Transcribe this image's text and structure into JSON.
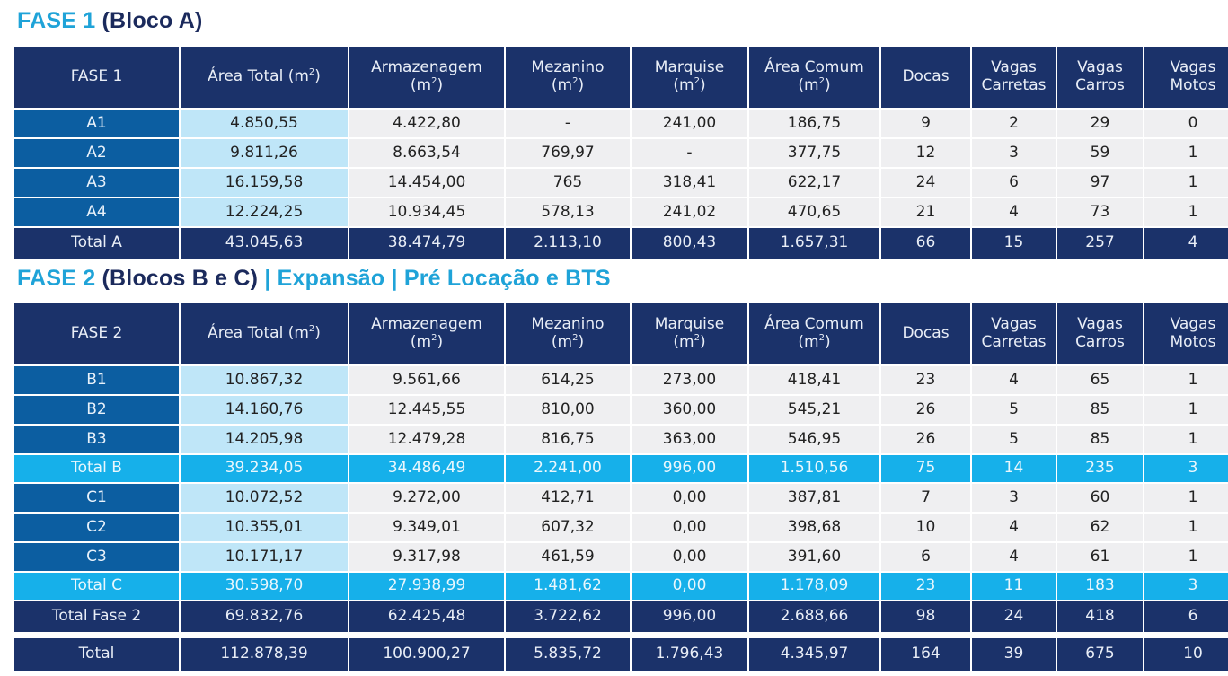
{
  "colors": {
    "header_navy": "#1b326a",
    "label_blue": "#0c5ea1",
    "area_light": "#bfe6f8",
    "row_gray": "#efeff1",
    "subtotal_cyan": "#16b0ea",
    "title_cyan": "#1fa3d8",
    "title_navy": "#1b2a5c"
  },
  "fase1": {
    "title": {
      "prefix": "FASE 1",
      "suffix": "(Bloco A)"
    },
    "headers": [
      {
        "line1": "FASE 1",
        "line2": ""
      },
      {
        "line1": "Área Total (m",
        "sup": "2",
        "close": ")"
      },
      {
        "line1": "Armazenagem",
        "line2": "(m",
        "sup": "2",
        "close": ")"
      },
      {
        "line1": "Mezanino",
        "line2": "(m",
        "sup": "2",
        "close": ")"
      },
      {
        "line1": "Marquise",
        "line2": "(m",
        "sup": "2",
        "close": ")"
      },
      {
        "line1": "Área Comum",
        "line2": "(m",
        "sup": "2",
        "close": ")"
      },
      {
        "line1": "Docas",
        "line2": ""
      },
      {
        "line1": "Vagas",
        "line2": "Carretas"
      },
      {
        "line1": "Vagas",
        "line2": "Carros"
      },
      {
        "line1": "Vagas",
        "line2": "Motos"
      }
    ],
    "rows": [
      [
        "A1",
        "4.850,55",
        "4.422,80",
        "-",
        "241,00",
        "186,75",
        "9",
        "2",
        "29",
        "0"
      ],
      [
        "A2",
        "9.811,26",
        "8.663,54",
        "769,97",
        "-",
        "377,75",
        "12",
        "3",
        "59",
        "1"
      ],
      [
        "A3",
        "16.159,58",
        "14.454,00",
        "765",
        "318,41",
        "622,17",
        "24",
        "6",
        "97",
        "1"
      ],
      [
        "A4",
        "12.224,25",
        "10.934,45",
        "578,13",
        "241,02",
        "470,65",
        "21",
        "4",
        "73",
        "1"
      ]
    ],
    "total": [
      "Total A",
      "43.045,63",
      "38.474,79",
      "2.113,10",
      "800,43",
      "1.657,31",
      "66",
      "15",
      "257",
      "4"
    ]
  },
  "fase2": {
    "title": {
      "prefix": "FASE 2",
      "middle": "(Blocos B e C)",
      "suffix": "| Expansão | Pré Locação e BTS"
    },
    "headers": [
      {
        "line1": "FASE 2",
        "line2": ""
      },
      {
        "line1": "Área Total (m",
        "sup": "2",
        "close": ")"
      },
      {
        "line1": "Armazenagem",
        "line2": "(m",
        "sup": "2",
        "close": ")"
      },
      {
        "line1": "Mezanino",
        "line2": "(m",
        "sup": "2",
        "close": ")"
      },
      {
        "line1": "Marquise",
        "line2": "(m",
        "sup": "2",
        "close": ")"
      },
      {
        "line1": "Área Comum",
        "line2": "(m",
        "sup": "2",
        "close": ")"
      },
      {
        "line1": "Docas",
        "line2": ""
      },
      {
        "line1": "Vagas",
        "line2": "Carretas"
      },
      {
        "line1": "Vagas",
        "line2": "Carros"
      },
      {
        "line1": "Vagas",
        "line2": "Motos"
      }
    ],
    "rows_b": [
      [
        "B1",
        "10.867,32",
        "9.561,66",
        "614,25",
        "273,00",
        "418,41",
        "23",
        "4",
        "65",
        "1"
      ],
      [
        "B2",
        "14.160,76",
        "12.445,55",
        "810,00",
        "360,00",
        "545,21",
        "26",
        "5",
        "85",
        "1"
      ],
      [
        "B3",
        "14.205,98",
        "12.479,28",
        "816,75",
        "363,00",
        "546,95",
        "26",
        "5",
        "85",
        "1"
      ]
    ],
    "total_b": [
      "Total B",
      "39.234,05",
      "34.486,49",
      "2.241,00",
      "996,00",
      "1.510,56",
      "75",
      "14",
      "235",
      "3"
    ],
    "rows_c": [
      [
        "C1",
        "10.072,52",
        "9.272,00",
        "412,71",
        "0,00",
        "387,81",
        "7",
        "3",
        "60",
        "1"
      ],
      [
        "C2",
        "10.355,01",
        "9.349,01",
        "607,32",
        "0,00",
        "398,68",
        "10",
        "4",
        "62",
        "1"
      ],
      [
        "C3",
        "10.171,17",
        "9.317,98",
        "461,59",
        "0,00",
        "391,60",
        "6",
        "4",
        "61",
        "1"
      ]
    ],
    "total_c": [
      "Total C",
      "30.598,70",
      "27.938,99",
      "1.481,62",
      "0,00",
      "1.178,09",
      "23",
      "11",
      "183",
      "3"
    ],
    "total_fase2": [
      "Total Fase 2",
      "69.832,76",
      "62.425,48",
      "3.722,62",
      "996,00",
      "2.688,66",
      "98",
      "24",
      "418",
      "6"
    ]
  },
  "grand_total": [
    "Total",
    "112.878,39",
    "100.900,27",
    "5.835,72",
    "1.796,43",
    "4.345,97",
    "164",
    "39",
    "675",
    "10"
  ]
}
